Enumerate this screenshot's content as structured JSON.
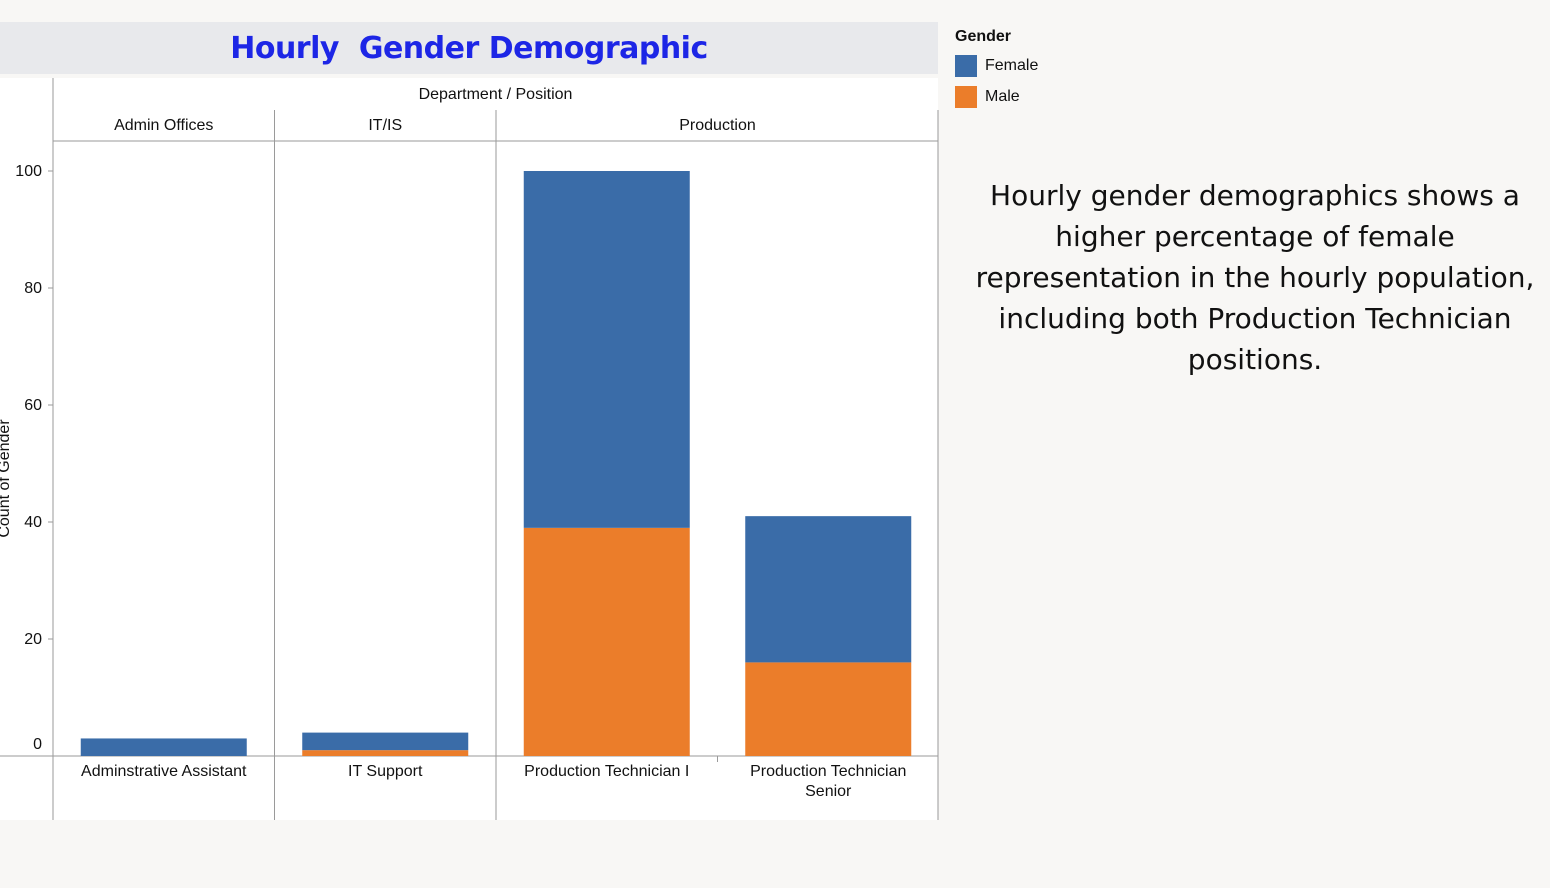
{
  "title": "Hourly  Gender Demographic",
  "legend": {
    "title": "Gender",
    "items": [
      {
        "label": "Female",
        "color": "#3a6ca8"
      },
      {
        "label": "Male",
        "color": "#eb7d2a"
      }
    ]
  },
  "note": "Hourly gender demographics shows a higher percentage of female representation in the hourly population, including both Production Technician positions.",
  "chart_data": {
    "type": "bar",
    "stacked": true,
    "header": "Department  /  Position",
    "ylabel": "Count of Gender",
    "ylim": [
      0,
      105
    ],
    "yticks": [
      0,
      20,
      40,
      60,
      80,
      100
    ],
    "departments": [
      {
        "name": "Admin Offices",
        "positions": [
          {
            "name": "Adminstrative Assistant",
            "name_lines": [
              "Adminstrative Assistant"
            ],
            "values": {
              "Male": 0,
              "Female": 3
            }
          }
        ]
      },
      {
        "name": "IT/IS",
        "positions": [
          {
            "name": "IT Support",
            "name_lines": [
              "IT Support"
            ],
            "values": {
              "Male": 1,
              "Female": 3
            }
          }
        ]
      },
      {
        "name": "Production",
        "positions": [
          {
            "name": "Production Technician I",
            "name_lines": [
              "Production Technician I"
            ],
            "values": {
              "Male": 39,
              "Female": 61
            }
          },
          {
            "name": "Production Technician Senior",
            "name_lines": [
              "Production Technician",
              "Senior"
            ],
            "values": {
              "Male": 16,
              "Female": 25
            }
          }
        ]
      }
    ],
    "series": [
      {
        "name": "Male",
        "color": "#eb7d2a"
      },
      {
        "name": "Female",
        "color": "#3a6ca8"
      }
    ]
  }
}
